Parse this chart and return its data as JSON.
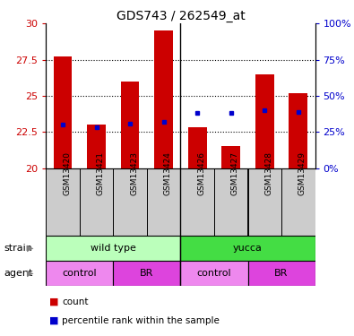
{
  "title": "GDS743 / 262549_at",
  "samples": [
    "GSM13420",
    "GSM13421",
    "GSM13423",
    "GSM13424",
    "GSM13426",
    "GSM13427",
    "GSM13428",
    "GSM13429"
  ],
  "bar_bottoms": [
    20,
    20,
    20,
    20,
    20,
    20,
    20,
    20
  ],
  "bar_tops": [
    27.7,
    23.0,
    26.0,
    29.5,
    22.8,
    21.5,
    26.5,
    25.2
  ],
  "percentile_values": [
    23.0,
    22.8,
    23.1,
    23.2,
    23.8,
    23.8,
    24.0,
    23.9
  ],
  "ylim_left": [
    20,
    30
  ],
  "ylim_right": [
    0,
    100
  ],
  "yticks_left": [
    20,
    22.5,
    25,
    27.5,
    30
  ],
  "yticks_right": [
    0,
    25,
    50,
    75,
    100
  ],
  "ytick_labels_left": [
    "20",
    "22.5",
    "25",
    "27.5",
    "30"
  ],
  "ytick_labels_right": [
    "0%",
    "25%",
    "50%",
    "75%",
    "100%"
  ],
  "bar_color": "#cc0000",
  "dot_color": "#0000cc",
  "strain_groups": [
    {
      "label": "wild type",
      "cols": [
        0,
        1,
        2,
        3
      ],
      "color": "#bbffbb"
    },
    {
      "label": "yucca",
      "cols": [
        4,
        5,
        6,
        7
      ],
      "color": "#44dd44"
    }
  ],
  "agent_groups": [
    {
      "label": "control",
      "cols": [
        0,
        1
      ],
      "color": "#ee88ee"
    },
    {
      "label": "BR",
      "cols": [
        2,
        3
      ],
      "color": "#dd44dd"
    },
    {
      "label": "control",
      "cols": [
        4,
        5
      ],
      "color": "#ee88ee"
    },
    {
      "label": "BR",
      "cols": [
        6,
        7
      ],
      "color": "#dd44dd"
    }
  ],
  "legend_count_color": "#cc0000",
  "legend_pct_color": "#0000cc",
  "tick_color_left": "#cc0000",
  "tick_color_right": "#0000cc",
  "separator_col": 3.5,
  "bar_width": 0.55,
  "sample_bg_color": "#cccccc",
  "grid_yticks": [
    22.5,
    25,
    27.5
  ]
}
